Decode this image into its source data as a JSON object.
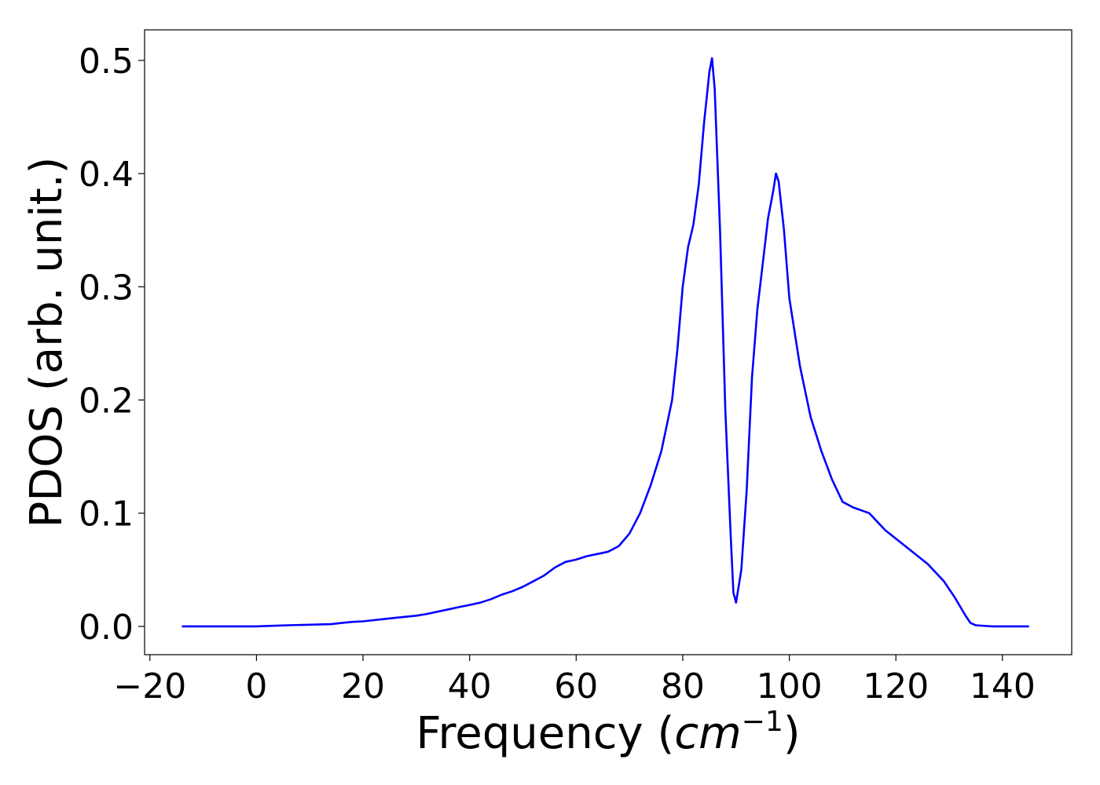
{
  "chart_data": {
    "type": "line",
    "title": "",
    "xlabel": "Frequency (cm⁻¹)",
    "xlabel_parts": {
      "prefix": "Frequency (",
      "italic": "cm",
      "sup": "−1",
      "suffix": ")"
    },
    "ylabel": "PDOS (arb. unit.)",
    "xlim": [
      -21,
      153
    ],
    "ylim": [
      -0.025,
      0.527
    ],
    "xticks": [
      -20,
      0,
      20,
      40,
      60,
      80,
      100,
      120,
      140
    ],
    "xtick_labels": [
      "−20",
      "0",
      "20",
      "40",
      "60",
      "80",
      "100",
      "120",
      "140"
    ],
    "yticks": [
      0.0,
      0.1,
      0.2,
      0.3,
      0.4,
      0.5
    ],
    "ytick_labels": [
      "0.0",
      "0.1",
      "0.2",
      "0.3",
      "0.4",
      "0.5"
    ],
    "grid": false,
    "legend": "none",
    "series": [
      {
        "color": "#0000ff",
        "x": [
          -14,
          -5,
          0,
          3,
          6,
          10,
          14,
          16,
          18,
          20,
          22,
          24,
          26,
          28,
          30,
          32,
          34,
          36,
          38,
          40,
          42,
          44,
          46,
          48,
          50,
          52,
          54,
          56,
          58,
          60,
          62,
          64,
          66,
          68,
          70,
          72,
          74,
          76,
          78,
          79,
          80,
          81,
          82,
          83,
          84,
          85,
          85.5,
          86,
          87,
          88,
          89,
          89.5,
          90,
          91,
          92,
          93,
          94,
          95,
          96,
          97,
          97.5,
          98,
          99,
          100,
          102,
          104,
          106,
          108,
          110,
          112,
          115,
          118,
          122,
          126,
          129,
          131,
          133,
          134,
          135,
          138,
          145
        ],
        "y": [
          0.0,
          0.0,
          0.0,
          0.0005,
          0.001,
          0.0015,
          0.002,
          0.003,
          0.004,
          0.0045,
          0.0055,
          0.0065,
          0.0075,
          0.0085,
          0.0095,
          0.011,
          0.013,
          0.015,
          0.017,
          0.019,
          0.021,
          0.024,
          0.028,
          0.031,
          0.035,
          0.04,
          0.045,
          0.052,
          0.057,
          0.059,
          0.062,
          0.064,
          0.066,
          0.071,
          0.082,
          0.1,
          0.125,
          0.155,
          0.2,
          0.245,
          0.3,
          0.335,
          0.355,
          0.39,
          0.445,
          0.49,
          0.502,
          0.475,
          0.35,
          0.19,
          0.08,
          0.03,
          0.021,
          0.05,
          0.12,
          0.22,
          0.28,
          0.32,
          0.36,
          0.385,
          0.4,
          0.393,
          0.35,
          0.29,
          0.23,
          0.185,
          0.155,
          0.13,
          0.11,
          0.105,
          0.1,
          0.085,
          0.07,
          0.055,
          0.04,
          0.026,
          0.01,
          0.003,
          0.001,
          0.0,
          0.0
        ]
      }
    ]
  }
}
